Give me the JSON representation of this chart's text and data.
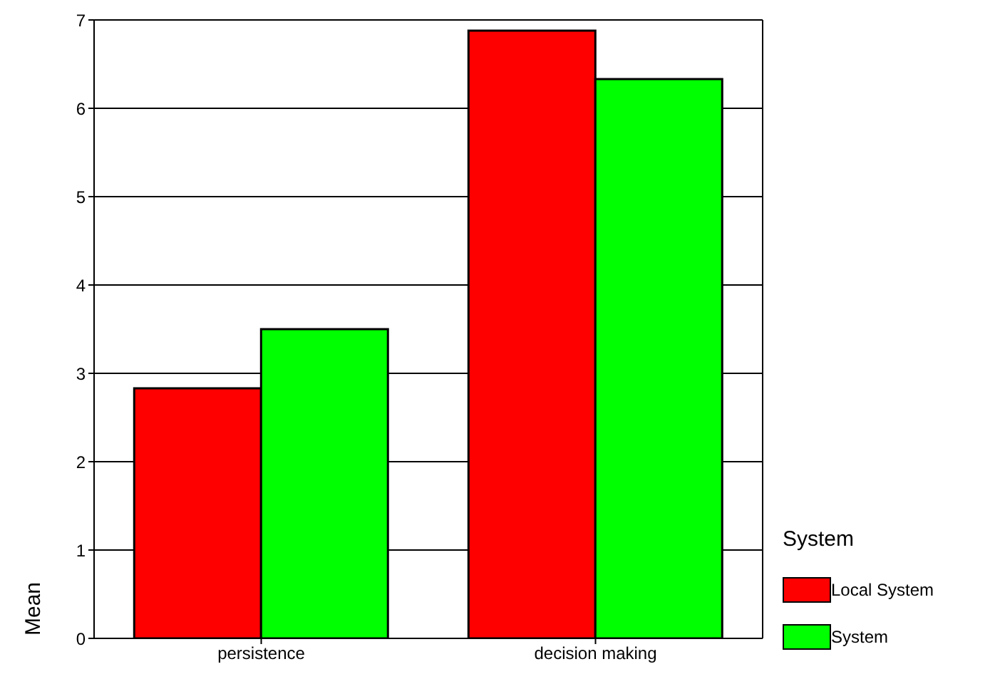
{
  "chart_data": {
    "type": "bar",
    "ylabel": "Mean",
    "legend_title": "System",
    "categories": [
      "persistence",
      "decision making"
    ],
    "series": [
      {
        "name": "Local System",
        "color": "#ff0000",
        "values": [
          2.83,
          6.88
        ]
      },
      {
        "name": "System",
        "color": "#00ff00",
        "values": [
          3.5,
          6.33
        ]
      }
    ],
    "ylim": [
      0,
      7
    ],
    "yticks": [
      0,
      1,
      2,
      3,
      4,
      5,
      6,
      7
    ],
    "grid": "y",
    "legend": "bottom right"
  }
}
